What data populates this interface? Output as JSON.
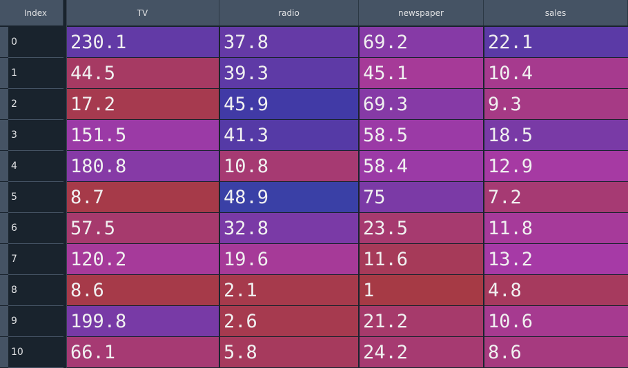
{
  "header": {
    "index_label": "Index",
    "columns": [
      "TV",
      "radio",
      "newspaper",
      "sales"
    ]
  },
  "rows": [
    {
      "index": "0",
      "values": [
        "230.1",
        "37.8",
        "69.2",
        "22.1"
      ]
    },
    {
      "index": "1",
      "values": [
        "44.5",
        "39.3",
        "45.1",
        "10.4"
      ]
    },
    {
      "index": "2",
      "values": [
        "17.2",
        "45.9",
        "69.3",
        "9.3"
      ]
    },
    {
      "index": "3",
      "values": [
        "151.5",
        "41.3",
        "58.5",
        "18.5"
      ]
    },
    {
      "index": "4",
      "values": [
        "180.8",
        "10.8",
        "58.4",
        "12.9"
      ]
    },
    {
      "index": "5",
      "values": [
        "8.7",
        "48.9",
        "75",
        "7.2"
      ]
    },
    {
      "index": "6",
      "values": [
        "57.5",
        "32.8",
        "23.5",
        "11.8"
      ]
    },
    {
      "index": "7",
      "values": [
        "120.2",
        "19.6",
        "11.6",
        "13.2"
      ]
    },
    {
      "index": "8",
      "values": [
        "8.6",
        "2.1",
        "1",
        "4.8"
      ]
    },
    {
      "index": "9",
      "values": [
        "199.8",
        "2.6",
        "21.2",
        "10.6"
      ]
    },
    {
      "index": "10",
      "values": [
        "66.1",
        "5.8",
        "24.2",
        "8.6"
      ]
    }
  ],
  "colors": {
    "header_bg": "#455364",
    "index_bg": "#19232d",
    "low_value": "#a8384a",
    "high_value": "#3b3aa8"
  }
}
